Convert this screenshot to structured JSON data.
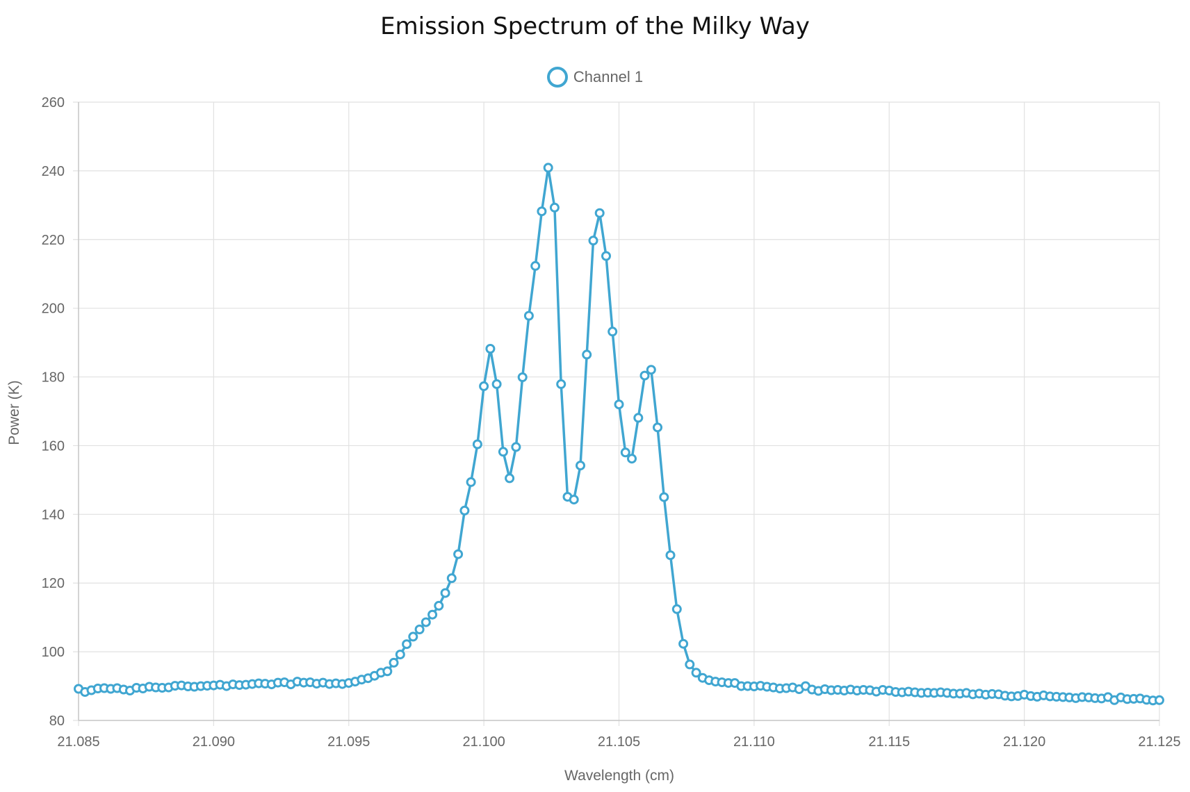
{
  "chart_data": {
    "type": "line",
    "title": "Emission Spectrum of the Milky Way",
    "xlabel": "Wavelength (cm)",
    "ylabel": "Power (K)",
    "xlim": [
      21.085,
      21.125
    ],
    "ylim": [
      80,
      260
    ],
    "x_ticks": [
      "21.085",
      "21.090",
      "21.095",
      "21.100",
      "21.105",
      "21.110",
      "21.115",
      "21.120",
      "21.125"
    ],
    "y_ticks": [
      "80",
      "100",
      "120",
      "140",
      "160",
      "180",
      "200",
      "220",
      "240",
      "260"
    ],
    "grid": true,
    "legend_position": "top",
    "series": [
      {
        "name": "Channel 1",
        "color": "#40a6d1",
        "marker": "open-circle",
        "x_start": 21.085,
        "x_end": 21.125,
        "values": [
          89.2,
          88.3,
          88.8,
          89.3,
          89.4,
          89.2,
          89.4,
          89.0,
          88.7,
          89.5,
          89.3,
          89.8,
          89.6,
          89.5,
          89.6,
          90.1,
          90.2,
          89.9,
          89.8,
          90.0,
          90.1,
          90.2,
          90.4,
          90.0,
          90.5,
          90.3,
          90.4,
          90.6,
          90.8,
          90.7,
          90.5,
          91.0,
          91.1,
          90.5,
          91.3,
          91.0,
          91.1,
          90.7,
          91.0,
          90.6,
          90.8,
          90.6,
          90.9,
          91.3,
          91.9,
          92.3,
          93.0,
          93.9,
          94.3,
          96.8,
          99.2,
          102.2,
          104.4,
          106.5,
          108.6,
          110.8,
          113.4,
          117.1,
          121.4,
          128.4,
          141.1,
          149.4,
          160.4,
          177.3,
          188.2,
          177.9,
          158.2,
          150.5,
          159.6,
          179.9,
          197.8,
          212.3,
          228.2,
          240.9,
          229.3,
          177.9,
          145.1,
          144.3,
          154.2,
          186.5,
          219.7,
          227.7,
          215.2,
          193.2,
          172.0,
          158.0,
          156.2,
          168.1,
          180.4,
          182.1,
          165.3,
          145.0,
          128.1,
          112.4,
          102.3,
          96.3,
          93.9,
          92.4,
          91.7,
          91.3,
          91.1,
          90.9,
          90.9,
          90.0,
          90.0,
          89.9,
          90.1,
          89.8,
          89.6,
          89.3,
          89.4,
          89.6,
          89.1,
          90.0,
          89.0,
          88.6,
          89.1,
          88.8,
          88.9,
          88.7,
          89.0,
          88.7,
          88.9,
          88.8,
          88.4,
          88.9,
          88.7,
          88.3,
          88.2,
          88.4,
          88.2,
          88.0,
          88.1,
          88.0,
          88.2,
          88.0,
          87.8,
          87.8,
          88.0,
          87.6,
          87.8,
          87.5,
          87.7,
          87.6,
          87.2,
          87.0,
          87.1,
          87.5,
          87.1,
          86.9,
          87.3,
          87.0,
          86.9,
          86.8,
          86.7,
          86.5,
          86.8,
          86.7,
          86.5,
          86.4,
          86.8,
          85.9,
          86.7,
          86.2,
          86.3,
          86.4,
          86.0,
          85.8,
          85.9
        ]
      }
    ]
  }
}
